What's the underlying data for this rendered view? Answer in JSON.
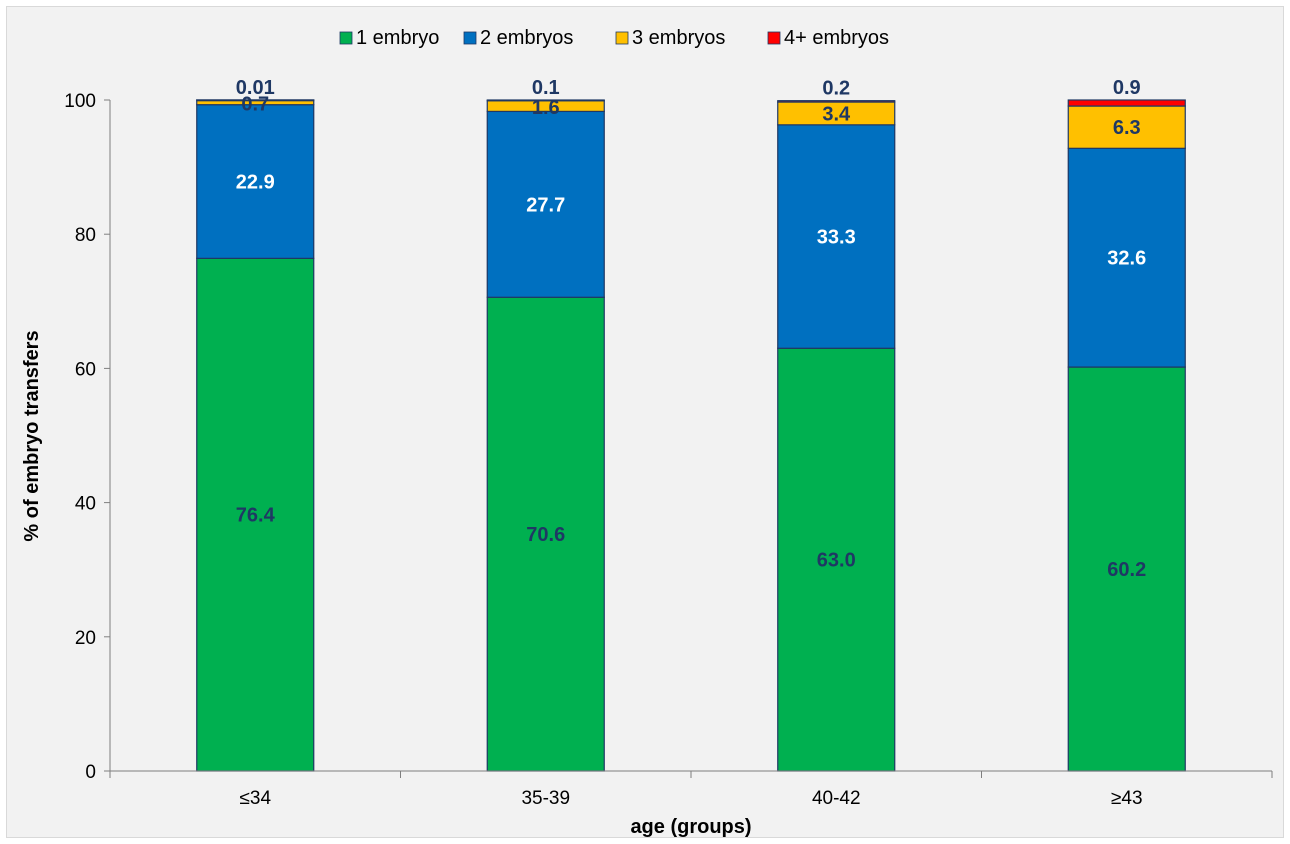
{
  "chart_data": {
    "type": "bar",
    "stacked": true,
    "title": "",
    "xlabel": "age (groups)",
    "ylabel": "% of embryo transfers",
    "ylim": [
      0,
      100
    ],
    "yticks": [
      0,
      20,
      40,
      60,
      80,
      100
    ],
    "categories": [
      "≤34",
      "35-39",
      "40-42",
      "≥43"
    ],
    "legend_position": "top",
    "grid": false,
    "series": [
      {
        "name": "1 embryo",
        "color": "#00b050",
        "label_color": "#1f3864",
        "values": [
          76.4,
          70.6,
          63.0,
          60.2
        ],
        "labels": [
          "76.4",
          "70.6",
          "63.0",
          "60.2"
        ]
      },
      {
        "name": "2 embryos",
        "color": "#0070c0",
        "label_color": "#ffffff",
        "values": [
          22.9,
          27.7,
          33.3,
          32.6
        ],
        "labels": [
          "22.9",
          "27.7",
          "33.3",
          "32.6"
        ]
      },
      {
        "name": "3 embryos",
        "color": "#ffc000",
        "label_color": "#1f3864",
        "values": [
          0.7,
          1.6,
          3.4,
          6.3
        ],
        "labels": [
          "0.7",
          "1.6",
          "3.4",
          "6.3"
        ]
      },
      {
        "name": "4+ embryos",
        "color": "#ff0000",
        "label_color": "#1f3864",
        "values": [
          0.01,
          0.1,
          0.2,
          0.9
        ],
        "labels": [
          "0.01",
          "0.1",
          "0.2",
          "0.9"
        ]
      }
    ]
  }
}
